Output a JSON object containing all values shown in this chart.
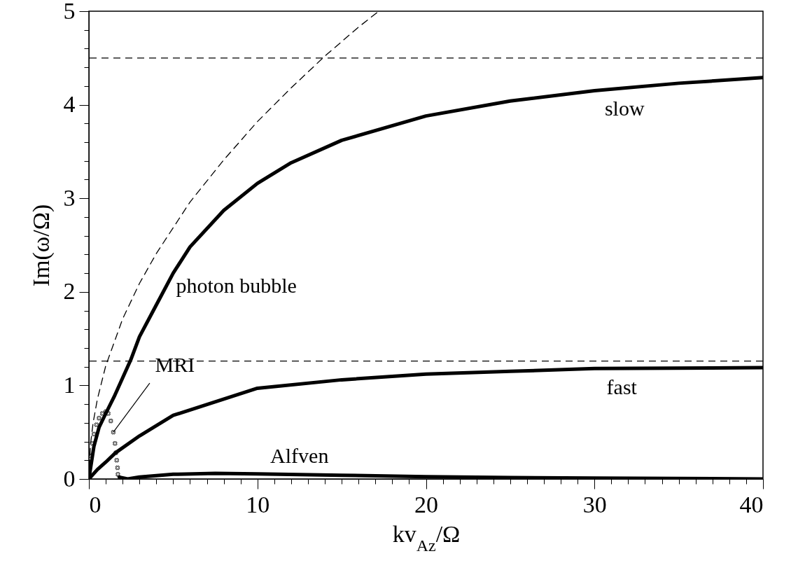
{
  "chart_data": {
    "type": "line",
    "xlabel": "kv$_{Az}$/Ω",
    "ylabel": "Im(ω/Ω)",
    "xlim": [
      0,
      40
    ],
    "ylim": [
      0,
      5
    ],
    "xticks": [
      0,
      10,
      20,
      30,
      40,
      {
        "value": 1,
        "label": null
      },
      {
        "value": 2,
        "label": null
      },
      {
        "value": 3,
        "label": null
      },
      {
        "value": 4,
        "label": null
      },
      {
        "value": 5,
        "label": null
      },
      {
        "value": 6,
        "label": null
      },
      {
        "value": 7,
        "label": null
      },
      {
        "value": 8,
        "label": null
      },
      {
        "value": 9,
        "label": null
      },
      {
        "value": 11,
        "label": null
      },
      {
        "value": 12,
        "label": null
      },
      {
        "value": 13,
        "label": null
      },
      {
        "value": 14,
        "label": null
      },
      {
        "value": 15,
        "label": null
      },
      {
        "value": 16,
        "label": null
      },
      {
        "value": 17,
        "label": null
      },
      {
        "value": 18,
        "label": null
      },
      {
        "value": 19,
        "label": null
      },
      {
        "value": 21,
        "label": null
      },
      {
        "value": 22,
        "label": null
      },
      {
        "value": 23,
        "label": null
      },
      {
        "value": 24,
        "label": null
      },
      {
        "value": 25,
        "label": null
      },
      {
        "value": 26,
        "label": null
      },
      {
        "value": 27,
        "label": null
      },
      {
        "value": 28,
        "label": null
      },
      {
        "value": 29,
        "label": null
      },
      {
        "value": 31,
        "label": null
      },
      {
        "value": 32,
        "label": null
      },
      {
        "value": 33,
        "label": null
      },
      {
        "value": 34,
        "label": null
      },
      {
        "value": 35,
        "label": null
      },
      {
        "value": 36,
        "label": null
      },
      {
        "value": 37,
        "label": null
      },
      {
        "value": 38,
        "label": null
      },
      {
        "value": 39,
        "label": null
      }
    ],
    "yticks": [
      0,
      1,
      2,
      3,
      4,
      5,
      {
        "value": 0.2,
        "label": null
      },
      {
        "value": 0.4,
        "label": null
      },
      {
        "value": 0.6,
        "label": null
      },
      {
        "value": 0.8,
        "label": null
      },
      {
        "value": 1.2,
        "label": null
      },
      {
        "value": 1.4,
        "label": null
      },
      {
        "value": 1.6,
        "label": null
      },
      {
        "value": 1.8,
        "label": null
      },
      {
        "value": 2.2,
        "label": null
      },
      {
        "value": 2.4,
        "label": null
      },
      {
        "value": 2.6,
        "label": null
      },
      {
        "value": 2.8,
        "label": null
      },
      {
        "value": 3.2,
        "label": null
      },
      {
        "value": 3.4,
        "label": null
      },
      {
        "value": 3.6,
        "label": null
      },
      {
        "value": 3.8,
        "label": null
      },
      {
        "value": 4.2,
        "label": null
      },
      {
        "value": 4.4,
        "label": null
      },
      {
        "value": 4.6,
        "label": null
      },
      {
        "value": 4.8,
        "label": null
      }
    ],
    "grid": false,
    "series": [
      {
        "color": "#000000",
        "line_style": "solid",
        "x": [
          0,
          0.3,
          0.6,
          1,
          1.5,
          2,
          2.5,
          3,
          4,
          5,
          6,
          8,
          10,
          12,
          15,
          20,
          25,
          30,
          35,
          40
        ],
        "values": [
          0,
          0.35,
          0.55,
          0.7,
          0.88,
          1.08,
          1.28,
          1.52,
          1.86,
          2.2,
          2.48,
          2.87,
          3.16,
          3.38,
          3.62,
          3.88,
          4.04,
          4.15,
          4.23,
          4.29
        ]
      },
      {
        "color": "#000000",
        "line_style": "solid",
        "x": [
          0,
          0.5,
          1,
          1.58,
          3,
          5,
          10,
          15,
          20,
          25,
          30,
          40
        ],
        "values": [
          0,
          0.1,
          0.18,
          0.28,
          0.46,
          0.68,
          0.97,
          1.06,
          1.12,
          1.15,
          1.18,
          1.19
        ]
      },
      {
        "color": "#000000",
        "line_style": "solid",
        "x": [
          1.8,
          2.3,
          3,
          5,
          7.5,
          10,
          15,
          20,
          25,
          30,
          40
        ],
        "values": [
          0.02,
          0,
          0.02,
          0.05,
          0.06,
          0.055,
          0.04,
          0.025,
          0.015,
          0.01,
          0
        ]
      },
      {
        "color": "#000000",
        "line_style": "dashed",
        "x": [
          0,
          0.1,
          0.25,
          0.5,
          1,
          2,
          3,
          4,
          6,
          8,
          10,
          12,
          14,
          16,
          17.2
        ],
        "values": [
          0,
          0.38,
          0.6,
          0.85,
          1.21,
          1.71,
          2.09,
          2.41,
          2.96,
          3.41,
          3.82,
          4.18,
          4.52,
          4.83,
          5.0
        ]
      },
      {
        "type": "scatter",
        "marker": "cross",
        "color": "#000000",
        "x": [
          0.1,
          0.2,
          0.3,
          0.45,
          0.6,
          0.8,
          1.0,
          1.15,
          1.3,
          1.45,
          1.55,
          1.6,
          1.65,
          1.7,
          1.72
        ],
        "values": [
          0.25,
          0.38,
          0.48,
          0.58,
          0.65,
          0.7,
          0.72,
          0.7,
          0.62,
          0.5,
          0.38,
          0.28,
          0.2,
          0.12,
          0.05
        ]
      }
    ],
    "ref_lines": [
      {
        "axis": "y",
        "value": 4.5,
        "line_style": "dashed"
      },
      {
        "axis": "y",
        "value": 1.26,
        "line_style": "dashed"
      }
    ],
    "annotations": [
      {
        "text": "slow",
        "x": 30,
        "y": 4.15
      },
      {
        "text": "photon bubble",
        "x": 5,
        "y": 2.2
      },
      {
        "text": "fast",
        "x": 30,
        "y": 1.18
      },
      {
        "text": "Alfven",
        "x": 10,
        "y": 0.055
      },
      {
        "text": "MRI",
        "x": 1.45,
        "y": 0.5
      }
    ]
  }
}
